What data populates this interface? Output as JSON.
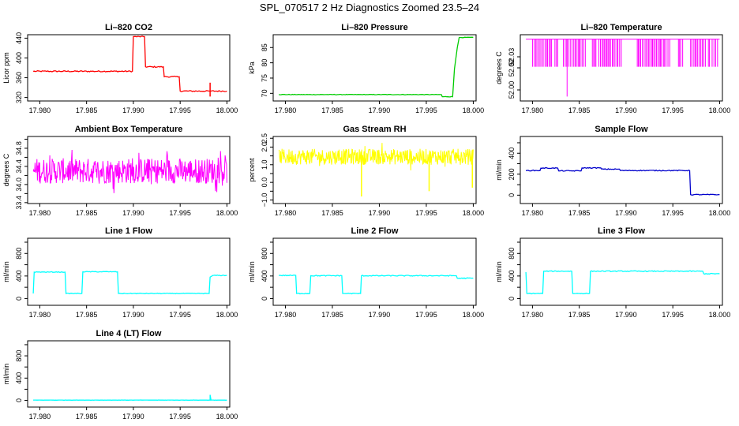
{
  "figure": {
    "title": "SPL_070517  2 Hz Diagnostics Zoomed 23.5–24"
  },
  "chart_data": [
    {
      "type": "line",
      "title": "Li–820 CO2",
      "xlabel": "",
      "ylabel": "Licor ppm",
      "xlim": [
        17.9787,
        18.0003
      ],
      "ylim": [
        313,
        447
      ],
      "x_ticks": [
        17.98,
        17.985,
        17.99,
        17.995,
        18.0
      ],
      "x_tick_labels": [
        "17.980",
        "17.985",
        "17.990",
        "17.995",
        "18.000"
      ],
      "y_ticks": [
        320,
        360,
        400,
        440
      ],
      "y_tick_labels": [
        "320",
        "360",
        "400",
        "440"
      ],
      "color": "#ff0000",
      "series": [
        {
          "x": [
            17.9793,
            17.9899,
            17.99,
            17.9912,
            17.9913,
            17.9932,
            17.9933,
            17.9949,
            17.995,
            17.9982,
            17.9983,
            18.0
          ],
          "y": [
            373,
            373,
            443,
            443,
            382,
            382,
            362,
            362,
            333,
            333,
            333,
            333
          ],
          "noise": 1.2
        }
      ],
      "annotations": [
        {
          "x": 17.9982,
          "y_min": 322,
          "y_max": 350,
          "label": "spike"
        }
      ]
    },
    {
      "type": "line",
      "title": "Li–820 Pressure",
      "xlabel": "",
      "ylabel": "kPa",
      "xlim": [
        17.9787,
        18.0003
      ],
      "ylim": [
        67.5,
        89.2
      ],
      "x_ticks": [
        17.98,
        17.985,
        17.99,
        17.995,
        18.0
      ],
      "x_tick_labels": [
        "17.980",
        "17.985",
        "17.990",
        "17.995",
        "18.000"
      ],
      "y_ticks": [
        70,
        75,
        80,
        85
      ],
      "y_tick_labels": [
        "70",
        "75",
        "80",
        "85"
      ],
      "color": "#00cc00",
      "series": [
        {
          "x": [
            17.9793,
            17.9966,
            17.9967,
            17.9978,
            17.998,
            17.9983,
            17.9985,
            18.0
          ],
          "y": [
            69.6,
            69.6,
            68.9,
            68.9,
            78,
            85,
            88.3,
            88.3
          ],
          "noise": 0.08
        }
      ]
    },
    {
      "type": "line",
      "title": "Li–820 Temperature",
      "xlabel": "",
      "ylabel": "degrees C",
      "xlim": [
        17.9787,
        18.0003
      ],
      "ylim": [
        51.99,
        52.05
      ],
      "x_ticks": [
        17.98,
        17.985,
        17.99,
        17.995,
        18.0
      ],
      "x_tick_labels": [
        "17.980",
        "17.985",
        "17.990",
        "17.995",
        "18.000"
      ],
      "y_ticks": [
        52.0,
        52.02,
        52.03
      ],
      "y_tick_labels": [
        "52.00",
        "52.02",
        "52.03"
      ],
      "color": "#ff00ff",
      "baseline": 52.046,
      "dip_level": 52.021,
      "deep_dip": {
        "x": 17.9837,
        "y": 51.994
      },
      "dip_ranges": [
        [
          17.98,
          17.9822
        ],
        [
          17.9824,
          17.9828
        ],
        [
          17.9833,
          17.9857
        ],
        [
          17.9864,
          17.9869
        ],
        [
          17.9871,
          17.9895
        ],
        [
          17.9912,
          17.9947
        ],
        [
          17.9956,
          17.9962
        ],
        [
          17.9969,
          17.9985
        ],
        [
          17.9988,
          17.999
        ],
        [
          17.9992,
          17.9999
        ]
      ]
    },
    {
      "type": "line",
      "title": "Ambient Box Temperature",
      "xlabel": "",
      "ylabel": "degrees C",
      "xlim": [
        17.9787,
        18.0003
      ],
      "ylim": [
        33.38,
        34.86
      ],
      "x_ticks": [
        17.98,
        17.985,
        17.99,
        17.995,
        18.0
      ],
      "x_tick_labels": [
        "17.980",
        "17.985",
        "17.990",
        "17.995",
        "18.000"
      ],
      "y_ticks": [
        33.4,
        33.6,
        33.8,
        34.0,
        34.2,
        34.4,
        34.6,
        34.8
      ],
      "y_tick_labels": [
        "33.4",
        "",
        "34.0",
        "",
        "34.4",
        "",
        "34.8",
        ""
      ],
      "color": "#ff00ff",
      "series": [
        {
          "x_range": [
            17.9793,
            18.0
          ],
          "mean": 34.1,
          "spread": 0.28,
          "min": 33.42,
          "max": 34.82
        }
      ]
    },
    {
      "type": "line",
      "title": "Gas Stream RH",
      "xlabel": "",
      "ylabel": "percent",
      "xlim": [
        17.9787,
        18.0003
      ],
      "ylim": [
        -1.2,
        2.6
      ],
      "x_ticks": [
        17.98,
        17.985,
        17.99,
        17.995,
        18.0
      ],
      "x_tick_labels": [
        "17.980",
        "17.985",
        "17.990",
        "17.995",
        "18.000"
      ],
      "y_ticks": [
        -1.0,
        -0.5,
        0.0,
        0.5,
        1.0,
        1.5,
        2.0,
        2.5
      ],
      "y_tick_labels": [
        "−1.0",
        "",
        "0.0",
        "",
        "1.0",
        "",
        "2.0",
        "2.5"
      ],
      "color": "#ffff00",
      "series": [
        {
          "x_range": [
            17.9793,
            18.0
          ],
          "mean": 1.45,
          "spread": 0.45,
          "min": -0.8,
          "max": 2.3
        }
      ],
      "annotations": [
        {
          "x": 17.9881,
          "y": -0.8
        },
        {
          "x": 17.9953,
          "y": -0.5
        },
        {
          "x": 17.9999,
          "y": -0.3
        }
      ]
    },
    {
      "type": "line",
      "title": "Sample Flow",
      "xlabel": "",
      "ylabel": "ml/min",
      "xlim": [
        17.9787,
        18.0003
      ],
      "ylim": [
        -80,
        560
      ],
      "x_ticks": [
        17.98,
        17.985,
        17.99,
        17.995,
        18.0
      ],
      "x_tick_labels": [
        "17.980",
        "17.985",
        "17.990",
        "17.995",
        "18.000"
      ],
      "y_ticks": [
        0,
        100,
        200,
        300,
        400,
        500
      ],
      "y_tick_labels": [
        "0",
        "",
        "200",
        "",
        "400",
        ""
      ],
      "color": "#0000cc",
      "series": [
        {
          "x": [
            17.9793,
            17.9808,
            17.9809,
            17.9827,
            17.9828,
            17.9852,
            17.9853,
            17.9873,
            17.9874,
            17.9893,
            17.9894,
            17.9968,
            17.9969,
            18.0
          ],
          "y": [
            235,
            235,
            258,
            258,
            232,
            232,
            260,
            260,
            248,
            248,
            235,
            235,
            5,
            5
          ],
          "noise": 4
        }
      ]
    },
    {
      "type": "line",
      "title": "Line 1 Flow",
      "xlabel": "",
      "ylabel": "ml/min",
      "xlim": [
        17.9787,
        18.0003
      ],
      "ylim": [
        -120,
        1070
      ],
      "x_ticks": [
        17.98,
        17.985,
        17.99,
        17.995,
        18.0
      ],
      "x_tick_labels": [
        "17.980",
        "17.985",
        "17.990",
        "17.995",
        "18.000"
      ],
      "y_ticks": [
        0,
        200,
        400,
        600,
        800,
        1000
      ],
      "y_tick_labels": [
        "0",
        "",
        "400",
        "",
        "800",
        ""
      ],
      "color": "#00ffff",
      "series": [
        {
          "x": [
            17.9793,
            17.9794,
            17.9827,
            17.9828,
            17.9845,
            17.9846,
            17.9883,
            17.9884,
            17.9981,
            17.9982,
            17.9985,
            18.0
          ],
          "y": [
            90,
            470,
            470,
            90,
            90,
            475,
            475,
            90,
            90,
            380,
            410,
            410
          ],
          "noise": 6
        }
      ]
    },
    {
      "type": "line",
      "title": "Line 2 Flow",
      "xlabel": "",
      "ylabel": "ml/min",
      "xlim": [
        17.9787,
        18.0003
      ],
      "ylim": [
        -120,
        1070
      ],
      "x_ticks": [
        17.98,
        17.985,
        17.99,
        17.995,
        18.0
      ],
      "x_tick_labels": [
        "17.980",
        "17.985",
        "17.990",
        "17.995",
        "18.000"
      ],
      "y_ticks": [
        0,
        200,
        400,
        600,
        800,
        1000
      ],
      "y_tick_labels": [
        "0",
        "",
        "400",
        "",
        "800",
        ""
      ],
      "color": "#00ffff",
      "series": [
        {
          "x": [
            17.9793,
            17.9811,
            17.9812,
            17.9826,
            17.9827,
            17.986,
            17.9861,
            17.988,
            17.9881,
            17.9982,
            17.9983,
            18.0
          ],
          "y": [
            410,
            410,
            90,
            90,
            405,
            405,
            90,
            90,
            405,
            405,
            360,
            360
          ],
          "noise": 8
        }
      ]
    },
    {
      "type": "line",
      "title": "Line 3 Flow",
      "xlabel": "",
      "ylabel": "ml/min",
      "xlim": [
        17.9787,
        18.0003
      ],
      "ylim": [
        -120,
        1070
      ],
      "x_ticks": [
        17.98,
        17.985,
        17.99,
        17.995,
        18.0
      ],
      "x_tick_labels": [
        "17.980",
        "17.985",
        "17.990",
        "17.995",
        "18.000"
      ],
      "y_ticks": [
        0,
        200,
        400,
        600,
        800,
        1000
      ],
      "y_tick_labels": [
        "0",
        "",
        "400",
        "",
        "800",
        ""
      ],
      "color": "#00ffff",
      "series": [
        {
          "x": [
            17.9793,
            17.9794,
            17.9811,
            17.9812,
            17.9842,
            17.9843,
            17.9861,
            17.9862,
            17.9982,
            17.9983,
            18.0
          ],
          "y": [
            470,
            90,
            90,
            485,
            485,
            90,
            90,
            485,
            485,
            440,
            440
          ],
          "noise": 7
        }
      ]
    },
    {
      "type": "line",
      "title": "Line 4 (LT) Flow",
      "xlabel": "",
      "ylabel": "ml/min",
      "xlim": [
        17.9787,
        18.0003
      ],
      "ylim": [
        -120,
        1070
      ],
      "x_ticks": [
        17.98,
        17.985,
        17.99,
        17.995,
        18.0
      ],
      "x_tick_labels": [
        "17.980",
        "17.985",
        "17.990",
        "17.995",
        "18.000"
      ],
      "y_ticks": [
        0,
        200,
        400,
        600,
        800,
        1000
      ],
      "y_tick_labels": [
        "0",
        "",
        "400",
        "",
        "800",
        ""
      ],
      "color": "#00ffff",
      "series": [
        {
          "x": [
            17.9793,
            17.9982,
            17.9982,
            17.9983,
            18.0
          ],
          "y": [
            5,
            5,
            100,
            5,
            5
          ],
          "noise": 2
        }
      ]
    }
  ]
}
